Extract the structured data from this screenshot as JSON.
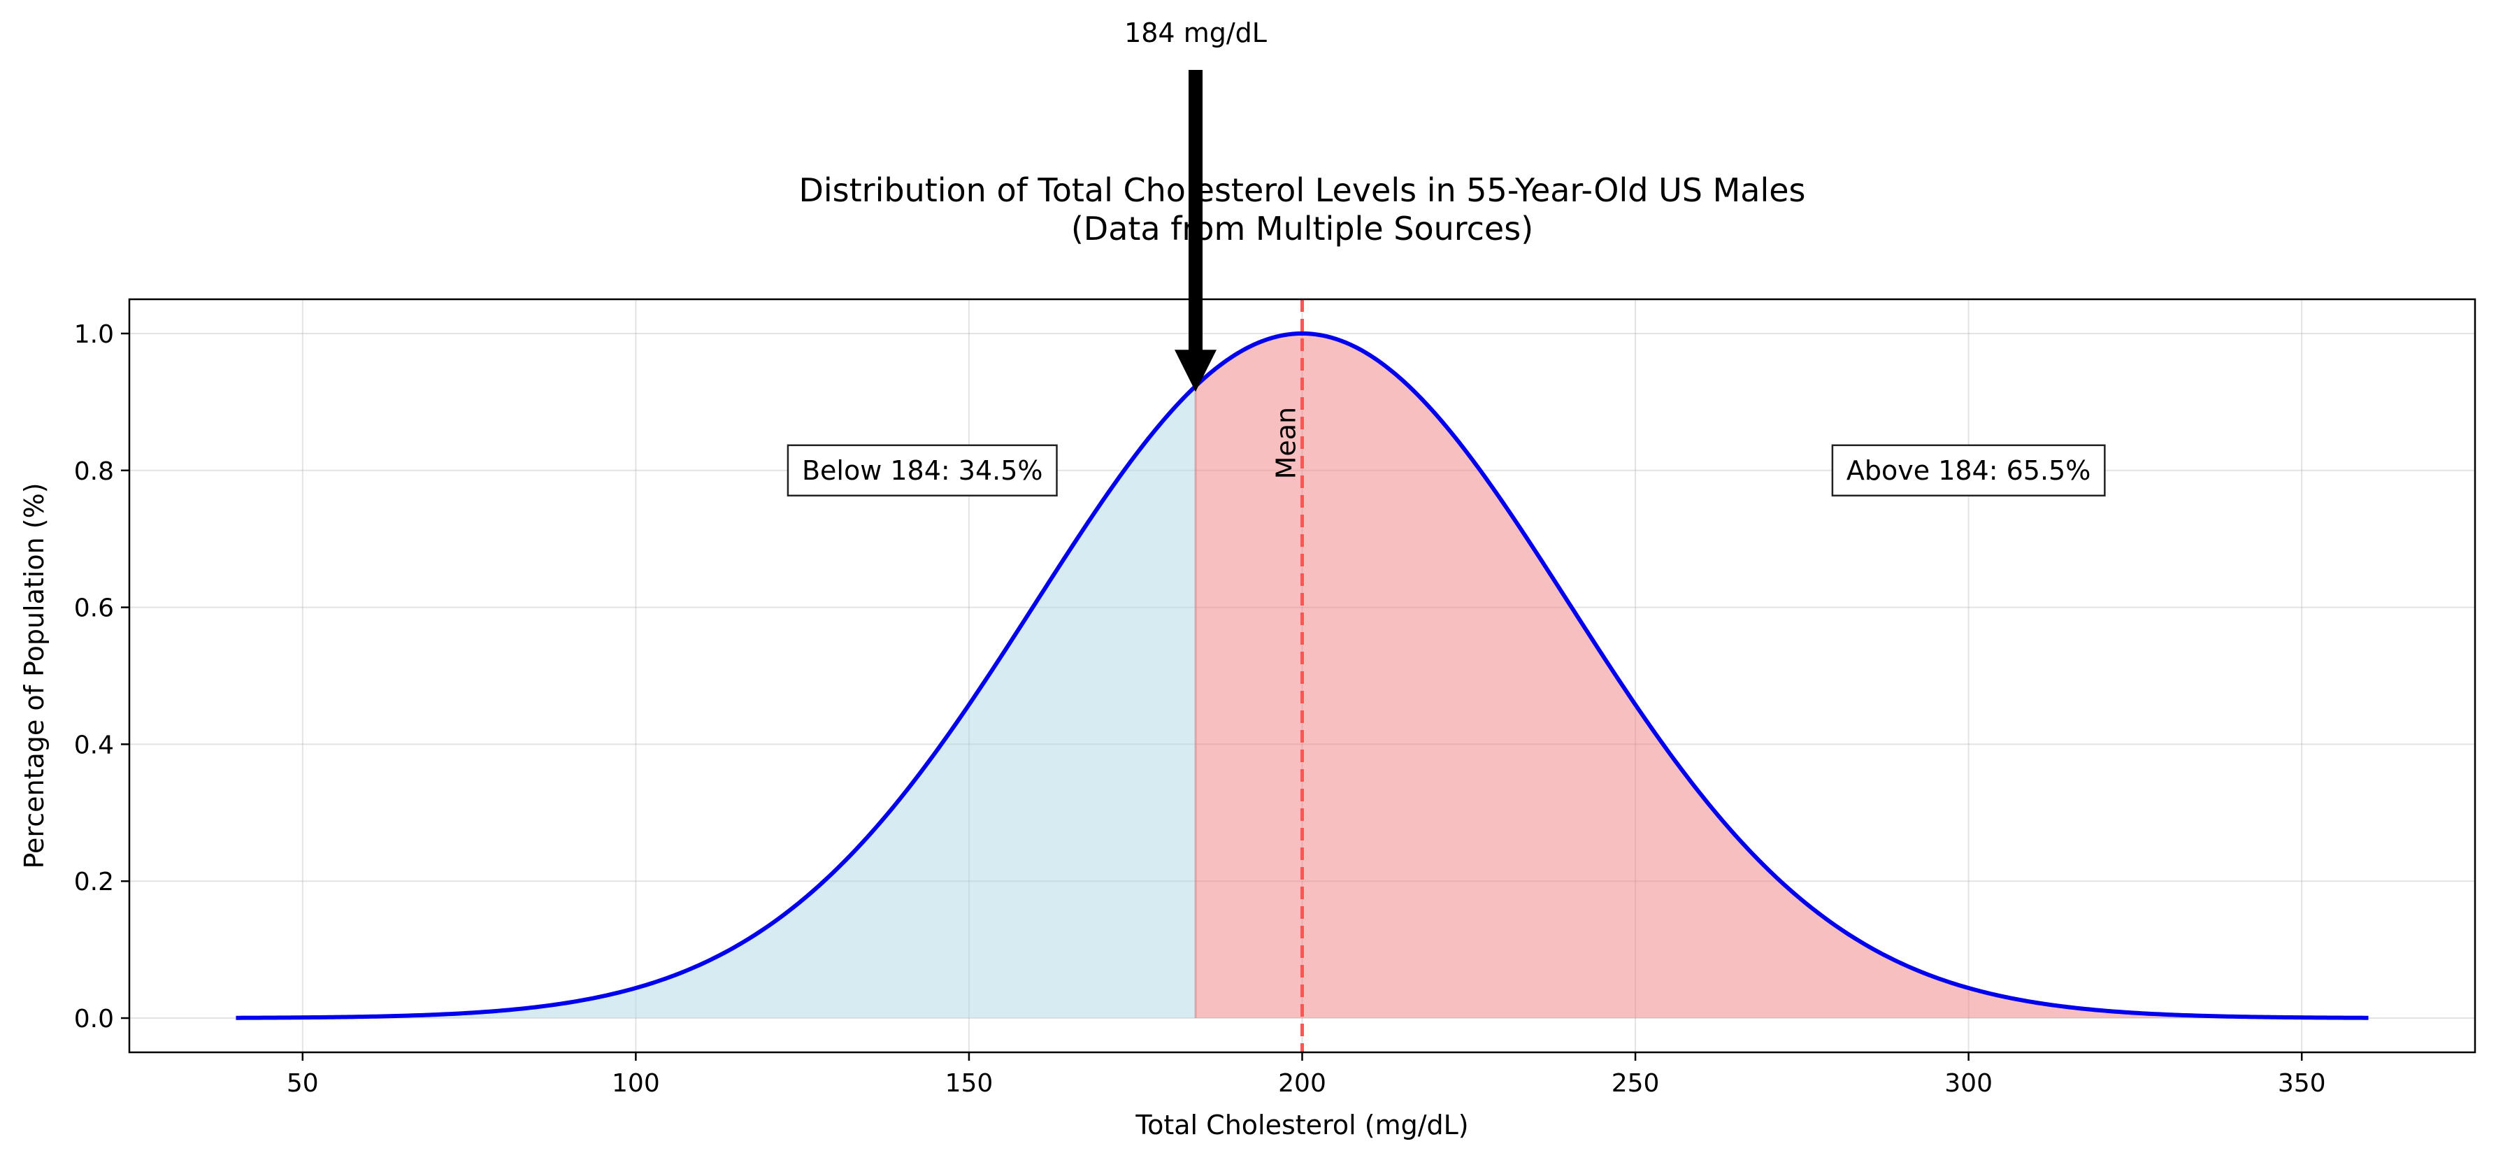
{
  "chart_data": {
    "type": "area",
    "title_lines": [
      "Distribution of Total Cholesterol Levels in 55-Year-Old US Males",
      "(Data from Multiple Sources)"
    ],
    "xlabel": "Total Cholesterol (mg/dL)",
    "ylabel": "Percentage of Population (%)",
    "xlim": [
      24,
      376
    ],
    "ylim": [
      -0.05,
      1.05
    ],
    "x_ticks": [
      50,
      100,
      150,
      200,
      250,
      300,
      350
    ],
    "y_ticks": [
      0.0,
      0.2,
      0.4,
      0.6,
      0.8,
      1.0
    ],
    "y_tick_labels": [
      "0.0",
      "0.2",
      "0.4",
      "0.6",
      "0.8",
      "1.0"
    ],
    "grid": true,
    "curve": {
      "distribution": "normal",
      "mean": 200,
      "std": 40,
      "x_range": [
        40,
        360
      ],
      "peak": 1.0,
      "color": "#0000ee"
    },
    "threshold": {
      "value": 184,
      "label": "184 mg/dL"
    },
    "regions": {
      "below": {
        "label": "Below 184: 34.5%",
        "color": "#add8e6",
        "box_at": [
          143,
          0.8
        ]
      },
      "above": {
        "label": "Above 184: 65.5%",
        "color": "#f08080",
        "box_at": [
          300,
          0.8
        ]
      }
    },
    "mean_line": {
      "x": 200,
      "label": "Mean",
      "color": "#ff5555"
    }
  }
}
